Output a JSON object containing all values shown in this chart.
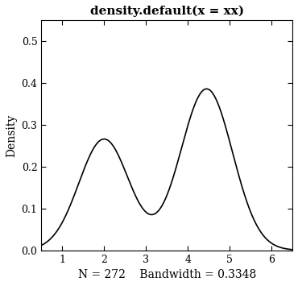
{
  "title": "density.default(x = xx)",
  "ylabel": "Density",
  "xlabel": "N = 272    Bandwidth = 0.3348",
  "xlim": [
    0.5,
    6.5
  ],
  "ylim": [
    0.0,
    0.55
  ],
  "yticks": [
    0.0,
    0.1,
    0.2,
    0.3,
    0.4,
    0.5
  ],
  "xticks": [
    1,
    2,
    3,
    4,
    5,
    6
  ],
  "line_color": "#000000",
  "background_color": "#ffffff",
  "peak1_mu": 2.0,
  "peak1_sigma": 0.6,
  "peak1_weight": 0.4,
  "peak2_mu": 4.45,
  "peak2_sigma": 0.62,
  "peak2_weight": 0.6,
  "title_fontsize": 11,
  "label_fontsize": 10,
  "tick_fontsize": 9
}
